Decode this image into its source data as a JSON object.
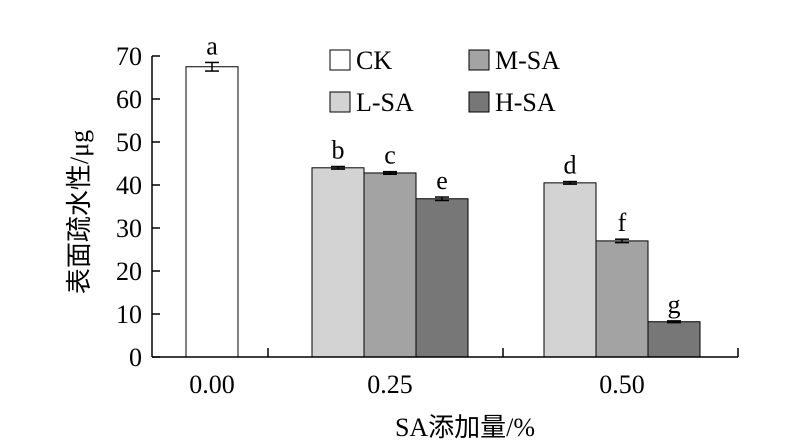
{
  "chart_data": {
    "type": "bar",
    "title": "",
    "xlabel": "SA添加量/%",
    "ylabel": "表面疏水性/μg",
    "ylim": [
      0,
      70
    ],
    "yticks": [
      "0",
      "10",
      "20",
      "30",
      "40",
      "50",
      "60",
      "70"
    ],
    "categories": [
      "0.00",
      "0.25",
      "0.50"
    ],
    "grid": false,
    "legend_position": "top-right",
    "legend": [
      {
        "name": "CK",
        "color": "#ffffff"
      },
      {
        "name": "M-SA",
        "color": "#a3a3a3"
      },
      {
        "name": "L-SA",
        "color": "#d3d3d3"
      },
      {
        "name": "H-SA",
        "color": "#777777"
      }
    ],
    "bars": [
      {
        "category": "0.00",
        "series": "CK",
        "value": 67.5,
        "error": 1.0,
        "label": "a",
        "color": "#ffffff"
      },
      {
        "category": "0.25",
        "series": "L-SA",
        "value": 44.0,
        "error": 0.3,
        "label": "b",
        "color": "#d3d3d3"
      },
      {
        "category": "0.25",
        "series": "M-SA",
        "value": 42.8,
        "error": 0.3,
        "label": "c",
        "color": "#a3a3a3"
      },
      {
        "category": "0.25",
        "series": "H-SA",
        "value": 36.8,
        "error": 0.4,
        "label": "e",
        "color": "#777777"
      },
      {
        "category": "0.50",
        "series": "L-SA",
        "value": 40.5,
        "error": 0.3,
        "label": "d",
        "color": "#d3d3d3"
      },
      {
        "category": "0.50",
        "series": "M-SA",
        "value": 27.0,
        "error": 0.4,
        "label": "f",
        "color": "#a3a3a3"
      },
      {
        "category": "0.50",
        "series": "H-SA",
        "value": 8.2,
        "error": 0.2,
        "label": "g",
        "color": "#777777"
      }
    ]
  }
}
